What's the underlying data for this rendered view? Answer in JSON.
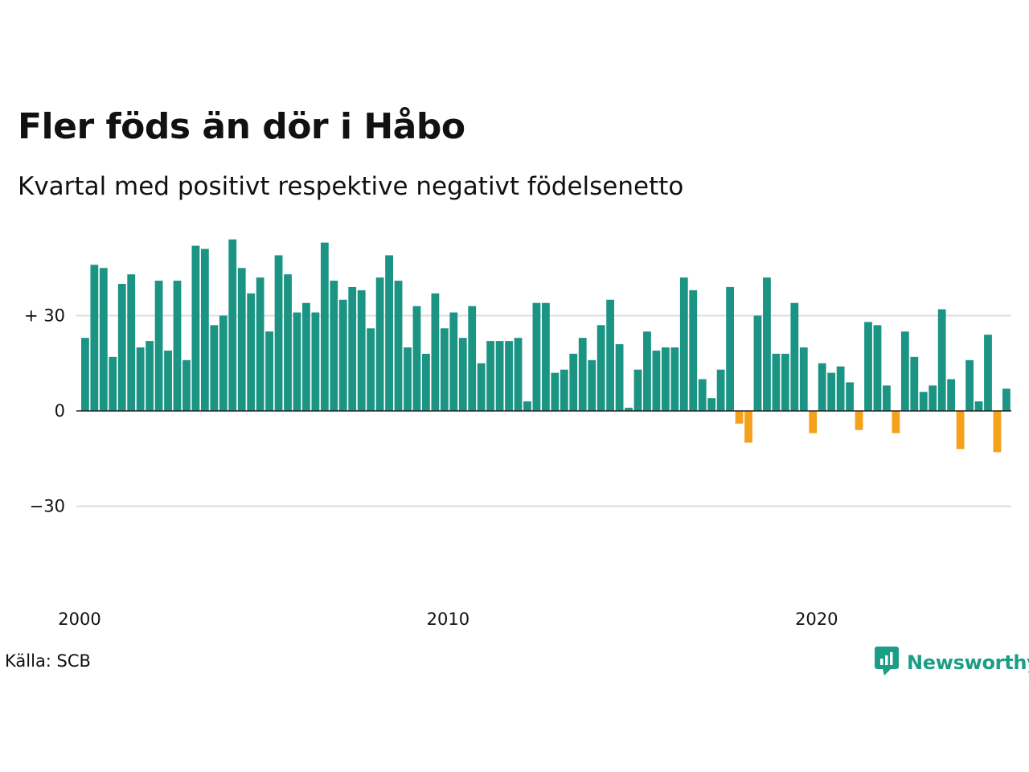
{
  "title": "Fler föds än dör i Håbo",
  "subtitle": "Kvartal med positivt respektive negativt födelsenetto",
  "source": "Källa: SCB",
  "logo": {
    "text": "Newsworthy",
    "icon": "newsworthy-logo-icon"
  },
  "colors": {
    "positive": "#1b9484",
    "negative": "#f5a11c",
    "grid": "#dddddd",
    "zero_line": "#222222",
    "brand": "#1b9e85"
  },
  "chart_data": {
    "type": "bar",
    "title": "Fler föds än dör i Håbo",
    "subtitle": "Kvartal med positivt respektive negativt födelsenetto",
    "xlabel": "",
    "ylabel": "",
    "ylim": [
      -50,
      55
    ],
    "y_ticks": [
      {
        "value": 30,
        "label": "+ 30"
      },
      {
        "value": 0,
        "label": "0"
      },
      {
        "value": -30,
        "label": "−30"
      }
    ],
    "x_ticks": [
      {
        "value": 2000,
        "label": "2000"
      },
      {
        "value": 2010,
        "label": "2010"
      },
      {
        "value": 2020,
        "label": "2020"
      }
    ],
    "x_start": 2000,
    "periods_per_year": 4,
    "grid": true,
    "legend": "none",
    "series": [
      {
        "values": [
          23,
          46,
          45,
          17,
          40,
          43,
          20,
          22,
          41,
          19,
          41,
          16,
          52,
          51,
          27,
          30,
          54,
          45,
          37,
          42,
          25,
          49,
          43,
          31,
          34,
          31,
          53,
          41,
          35,
          39,
          38,
          26,
          42,
          49,
          41,
          20,
          33,
          18,
          37,
          26,
          31,
          23,
          33,
          15,
          22,
          22,
          22,
          23,
          3,
          34,
          34,
          12,
          13,
          18,
          23,
          16,
          27,
          35,
          21,
          1,
          13,
          25,
          19,
          20,
          20,
          42,
          38,
          10,
          4,
          13,
          39,
          -4,
          -10,
          30,
          42,
          18,
          18,
          34,
          20,
          -7,
          15,
          12,
          14,
          9,
          -6,
          28,
          27,
          8,
          -7,
          25,
          17,
          6,
          8,
          32,
          10,
          -12,
          16,
          3,
          24,
          -13,
          7
        ]
      }
    ]
  }
}
